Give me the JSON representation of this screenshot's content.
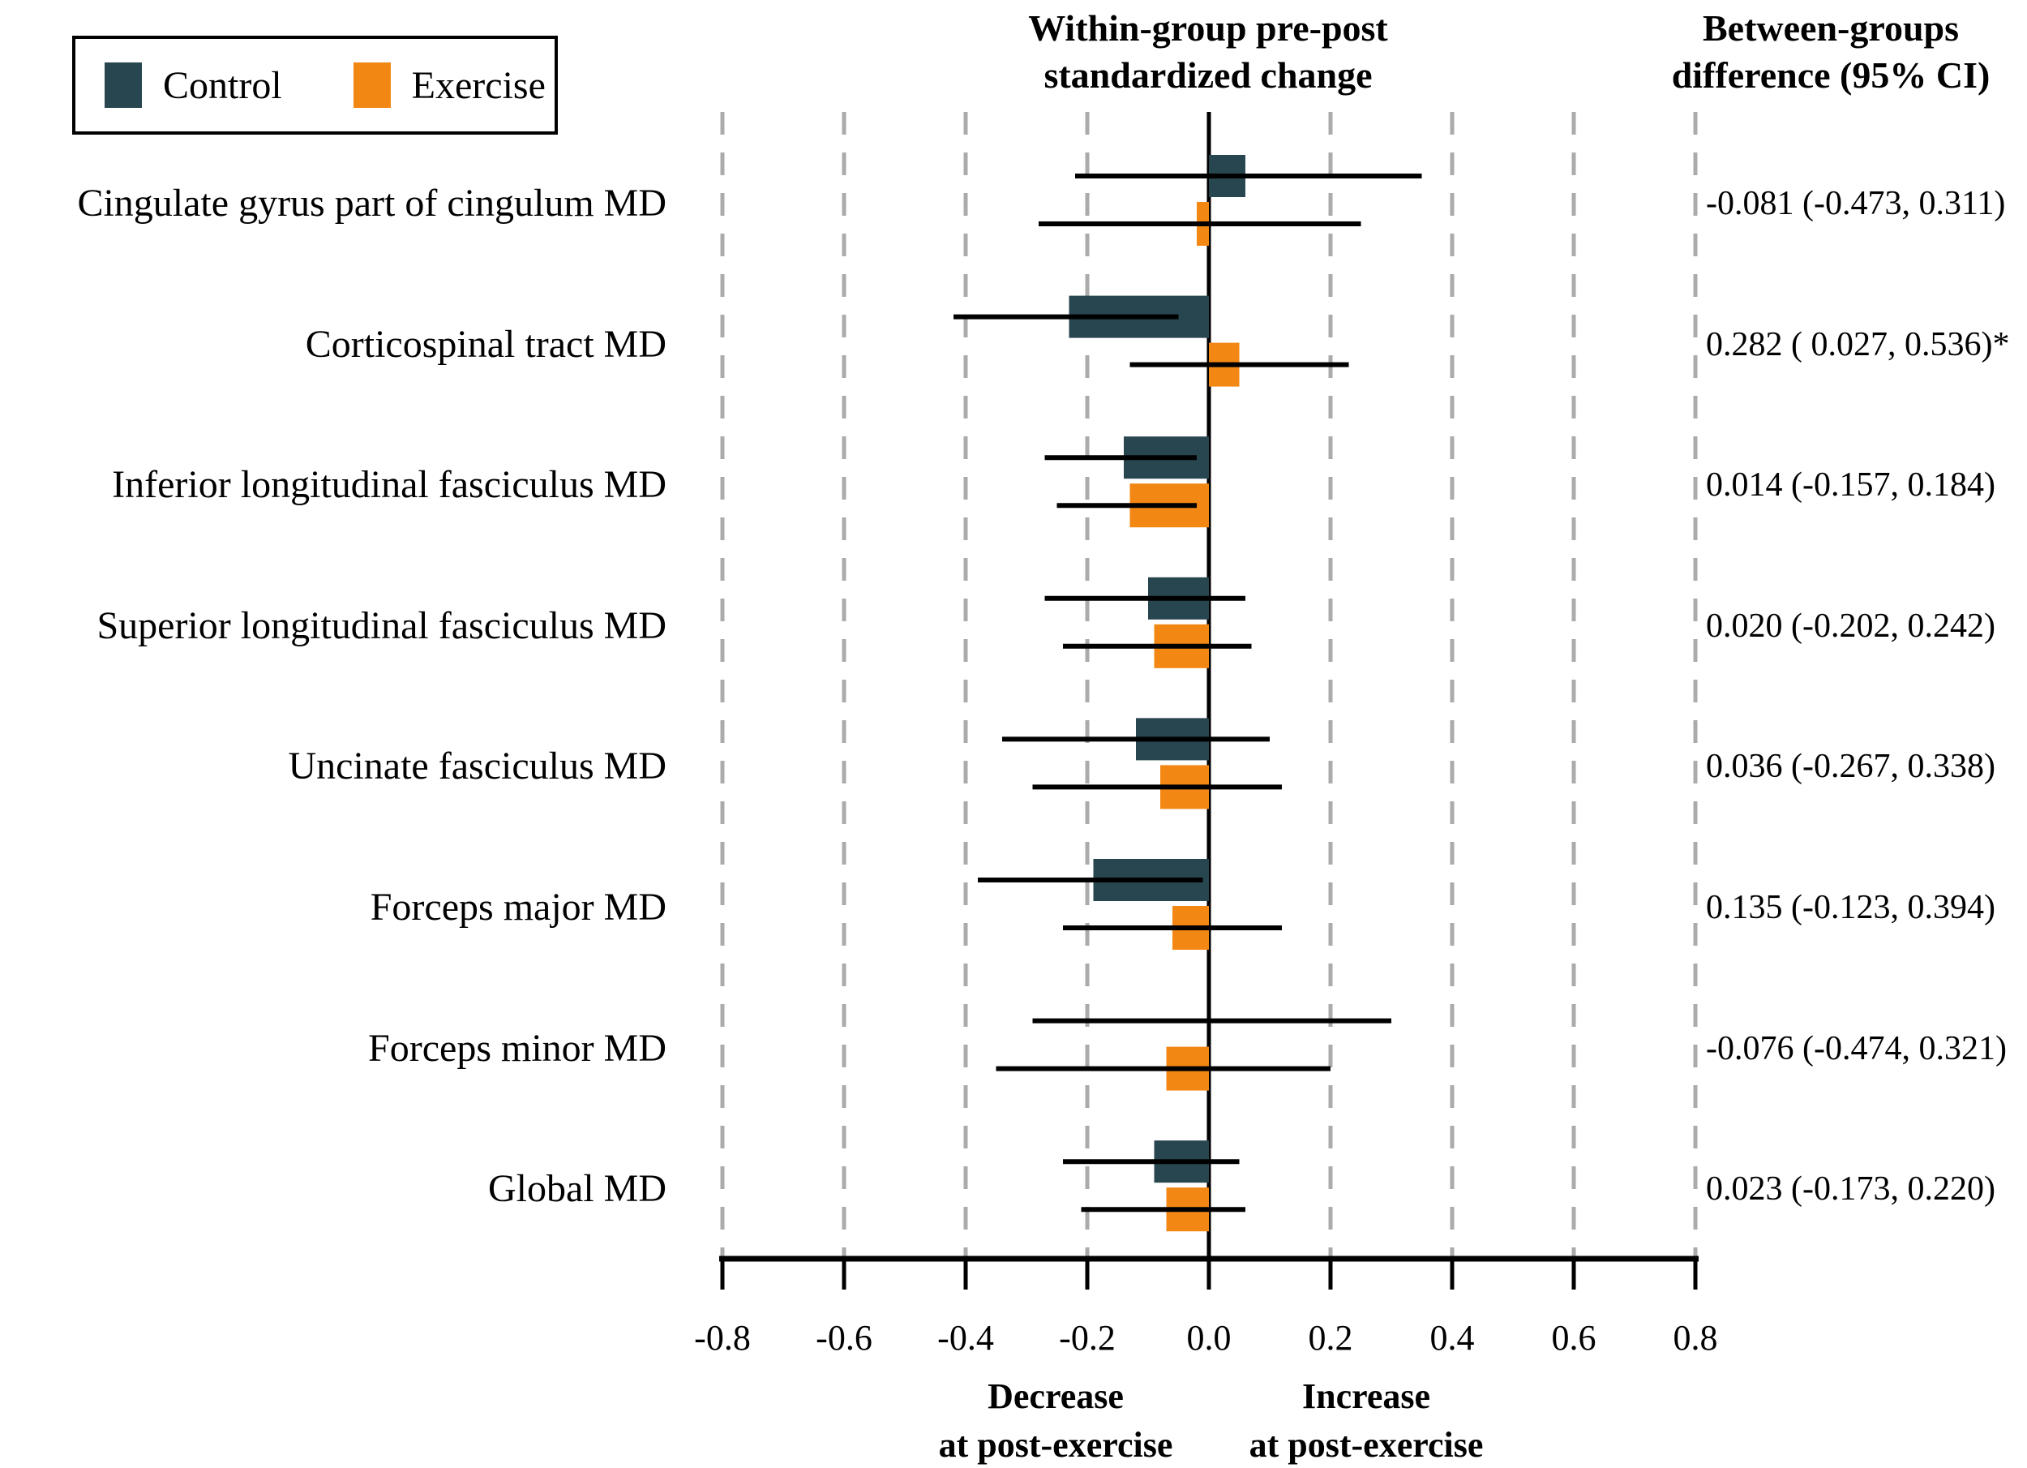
{
  "figure": {
    "legend": {
      "items": [
        {
          "label": "Control",
          "color": "#274650"
        },
        {
          "label": "Exercise",
          "color": "#F28714"
        }
      ]
    },
    "column_headers": {
      "plot": [
        "Within-group pre-post",
        "standardized change"
      ],
      "difference": [
        "Between-groups",
        "difference (95% CI)"
      ]
    },
    "x_axis": {
      "annotation_negative": [
        "Decrease",
        "at post-exercise"
      ],
      "annotation_positive": [
        "Increase",
        "at post-exercise"
      ]
    }
  },
  "chart_data": {
    "type": "bar",
    "orientation": "horizontal",
    "title": "Within-group pre-post standardized change",
    "right_column_header": "Between-groups difference (95% CI)",
    "xlabel_negative": "Decrease at post-exercise",
    "xlabel_positive": "Increase at post-exercise",
    "xlim": [
      -0.8,
      0.8
    ],
    "x_tick_labels": [
      "-0.8",
      "-0.6",
      "-0.4",
      "-0.2",
      "0.0",
      "0.2",
      "0.4",
      "0.6",
      "0.8"
    ],
    "grid": "dashed vertical at every 0.2 except solid zero line",
    "legend_position": "top-left",
    "series_names": [
      "Control",
      "Exercise"
    ],
    "colors": {
      "control": "#274650",
      "exercise": "#F28714",
      "gridline": "#ABABAB",
      "axis": "#000000"
    },
    "rows": [
      {
        "label": "Cingulate gyrus part of cingulum MD",
        "control": {
          "change": 0.06,
          "ci": [
            -0.22,
            0.35
          ]
        },
        "exercise": {
          "change": -0.02,
          "ci": [
            -0.28,
            0.25
          ]
        },
        "between_groups_difference": "-0.081 (-0.473, 0.311)"
      },
      {
        "label": "Corticospinal tract MD",
        "control": {
          "change": -0.23,
          "ci": [
            -0.42,
            -0.05
          ]
        },
        "exercise": {
          "change": 0.05,
          "ci": [
            -0.13,
            0.23
          ]
        },
        "between_groups_difference": "0.282 ( 0.027, 0.536)*"
      },
      {
        "label": "Inferior longitudinal fasciculus MD",
        "control": {
          "change": -0.14,
          "ci": [
            -0.27,
            -0.02
          ]
        },
        "exercise": {
          "change": -0.13,
          "ci": [
            -0.25,
            -0.02
          ]
        },
        "between_groups_difference": "0.014 (-0.157, 0.184)"
      },
      {
        "label": "Superior longitudinal fasciculus MD",
        "control": {
          "change": -0.1,
          "ci": [
            -0.27,
            0.06
          ]
        },
        "exercise": {
          "change": -0.09,
          "ci": [
            -0.24,
            0.07
          ]
        },
        "between_groups_difference": "0.020 (-0.202, 0.242)"
      },
      {
        "label": "Uncinate fasciculus MD",
        "control": {
          "change": -0.12,
          "ci": [
            -0.34,
            0.1
          ]
        },
        "exercise": {
          "change": -0.08,
          "ci": [
            -0.29,
            0.12
          ]
        },
        "between_groups_difference": "0.036 (-0.267, 0.338)"
      },
      {
        "label": "Forceps major MD",
        "control": {
          "change": -0.19,
          "ci": [
            -0.38,
            -0.01
          ]
        },
        "exercise": {
          "change": -0.06,
          "ci": [
            -0.24,
            0.12
          ]
        },
        "between_groups_difference": "0.135 (-0.123, 0.394)"
      },
      {
        "label": "Forceps minor MD",
        "control": {
          "change": 0.0,
          "ci": [
            -0.29,
            0.3
          ]
        },
        "exercise": {
          "change": -0.07,
          "ci": [
            -0.35,
            0.2
          ]
        },
        "between_groups_difference": "-0.076 (-0.474, 0.321)"
      },
      {
        "label": "Global MD",
        "control": {
          "change": -0.09,
          "ci": [
            -0.24,
            0.05
          ]
        },
        "exercise": {
          "change": -0.07,
          "ci": [
            -0.21,
            0.06
          ]
        },
        "between_groups_difference": "0.023 (-0.173, 0.220)"
      }
    ]
  }
}
